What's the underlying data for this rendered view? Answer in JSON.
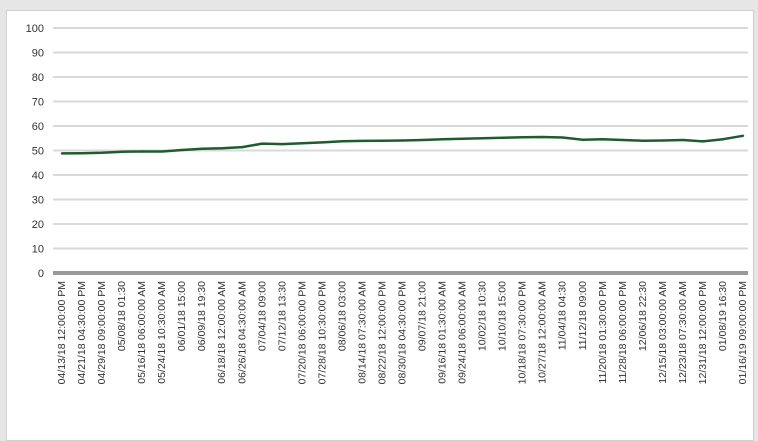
{
  "chart_data": {
    "type": "line",
    "title": "",
    "xlabel": "",
    "ylabel": "",
    "ylim": [
      0,
      100
    ],
    "yticks": [
      0,
      10,
      20,
      30,
      40,
      50,
      60,
      70,
      80,
      90,
      100
    ],
    "grid": true,
    "legend": "none",
    "colors": {
      "line": "#1e5c2e",
      "grid": "#d9d9d9",
      "axis": "#999999"
    },
    "x_tick_labels": [
      "04/13/18 12:00:00 PM",
      "04/21/18 04:30:00 PM",
      "04/29/18 09:00:00 PM",
      "05/08/18 01:30",
      "05/16/18 06:00:00 AM",
      "05/24/18 10:30:00 AM",
      "06/01/18 15:00",
      "06/09/18 19:30",
      "06/18/18 12:00:00 AM",
      "06/26/18 04:30:00 AM",
      "07/04/18 09:00",
      "07/12/18 13:30",
      "07/20/18 06:00:00 PM",
      "07/28/18 10:30:00 PM",
      "08/06/18 03:00",
      "08/14/18 07:30:00 AM",
      "08/22/18 12:00:00 PM",
      "08/30/18 04:30:00 PM",
      "09/07/18 21:00",
      "09/16/18 01:30:00 AM",
      "09/24/18 06:00:00 AM",
      "10/02/18 10:30",
      "10/10/18 15:00",
      "10/18/18 07:30:00 PM",
      "10/27/18 12:00:00 AM",
      "11/04/18 04:30",
      "11/12/18 09:00",
      "11/20/18 01:30:00 PM",
      "11/28/18 06:00:00 PM",
      "12/06/18 22:30",
      "12/15/18 03:00:00 AM",
      "12/23/18 07:30:00 AM",
      "12/31/18 12:00:00 PM",
      "01/08/19 16:30",
      "01/16/19 09:00:00 PM"
    ],
    "series": [
      {
        "values": [
          48.8,
          48.9,
          49.1,
          49.5,
          49.6,
          49.6,
          50.2,
          50.7,
          50.9,
          51.4,
          52.8,
          52.6,
          53.0,
          53.3,
          53.8,
          53.9,
          54.0,
          54.1,
          54.3,
          54.6,
          54.8,
          55.0,
          55.2,
          55.4,
          55.5,
          55.3,
          54.4,
          54.6,
          54.3,
          54.0,
          54.1,
          54.3,
          53.7,
          54.6,
          56.0
        ]
      }
    ]
  }
}
